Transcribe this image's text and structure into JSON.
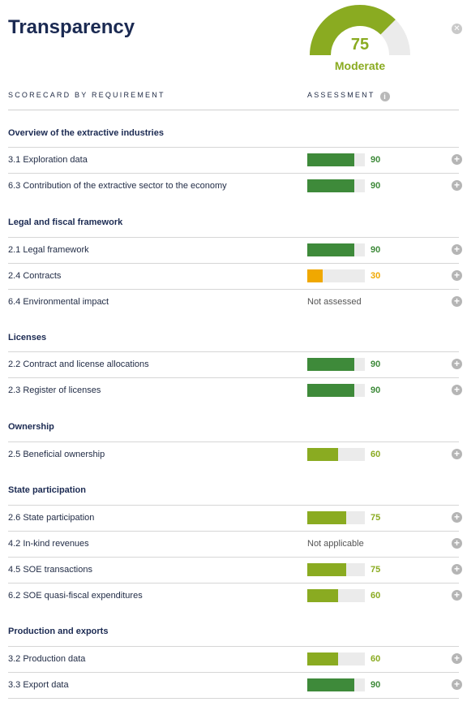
{
  "header": {
    "title": "Transparency",
    "close_icon": "close-icon",
    "gauge": {
      "score": "75",
      "value": 75,
      "max": 100,
      "label": "Moderate",
      "fill_color": "#8aab21",
      "track_color": "#ebebeb"
    }
  },
  "columns": {
    "left": "SCORECARD BY REQUIREMENT",
    "right": "ASSESSMENT",
    "info_icon": "info-icon",
    "info_glyph": "i"
  },
  "colors": {
    "high": "#3e8a3a",
    "medium": "#8aab21",
    "low": "#f0a800",
    "track": "#ebebeb"
  },
  "groups": [
    {
      "title": "Overview of the extractive industries",
      "rows": [
        {
          "label": "3.1 Exploration data",
          "value": 90,
          "score": "90",
          "level": "high"
        },
        {
          "label": "6.3 Contribution of the extractive sector to the economy",
          "value": 90,
          "score": "90",
          "level": "high"
        }
      ]
    },
    {
      "title": "Legal and fiscal framework",
      "rows": [
        {
          "label": "2.1 Legal framework",
          "value": 90,
          "score": "90",
          "level": "high"
        },
        {
          "label": "2.4 Contracts",
          "value": 30,
          "score": "30",
          "level": "low"
        },
        {
          "label": "6.4 Environmental impact",
          "status": "Not assessed"
        }
      ]
    },
    {
      "title": "Licenses",
      "rows": [
        {
          "label": "2.2 Contract and license allocations",
          "value": 90,
          "score": "90",
          "level": "high"
        },
        {
          "label": "2.3 Register of licenses",
          "value": 90,
          "score": "90",
          "level": "high"
        }
      ]
    },
    {
      "title": "Ownership",
      "rows": [
        {
          "label": "2.5 Beneficial ownership",
          "value": 60,
          "score": "60",
          "level": "medium"
        }
      ]
    },
    {
      "title": "State participation",
      "rows": [
        {
          "label": "2.6 State participation",
          "value": 75,
          "score": "75",
          "level": "medium"
        },
        {
          "label": "4.2 In-kind revenues",
          "status": "Not applicable"
        },
        {
          "label": "4.5 SOE transactions",
          "value": 75,
          "score": "75",
          "level": "medium"
        },
        {
          "label": "6.2 SOE quasi-fiscal expenditures",
          "value": 60,
          "score": "60",
          "level": "medium"
        }
      ]
    },
    {
      "title": "Production and exports",
      "rows": [
        {
          "label": "3.2 Production data",
          "value": 60,
          "score": "60",
          "level": "medium"
        },
        {
          "label": "3.3 Export data",
          "value": 90,
          "score": "90",
          "level": "high"
        }
      ]
    }
  ],
  "row_action": {
    "icon": "plus-circle-icon",
    "glyph": "+"
  },
  "close_glyph": "✕"
}
